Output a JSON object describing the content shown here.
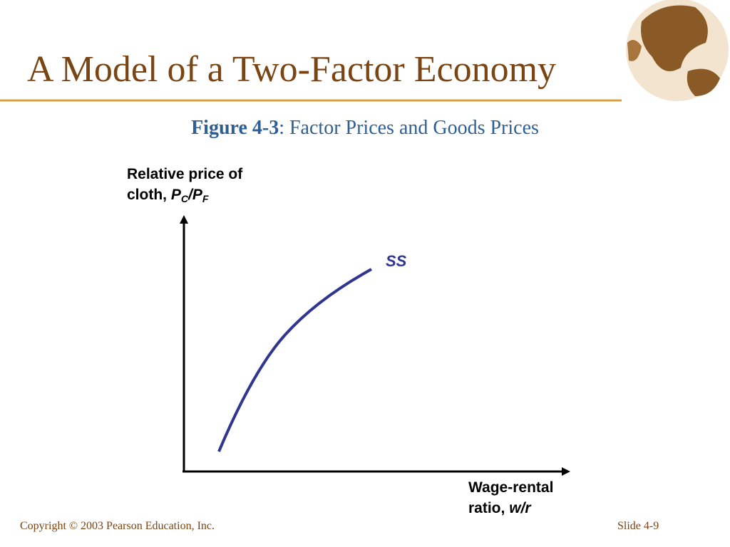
{
  "header": {
    "title": "A Model of a Two-Factor Economy"
  },
  "figure": {
    "number": "Figure 4-3",
    "caption": ": Factor Prices and Goods Prices",
    "y_axis": {
      "lines": [
        "Relative price of",
        "cloth,"
      ],
      "symbol": {
        "numerator": "P",
        "numerator_sub": "C",
        "denominator": "/P",
        "denominator_sub": "F"
      }
    },
    "x_axis": {
      "lines": [
        "Wage-rental",
        "ratio,"
      ],
      "symbol": "w/r"
    },
    "curve_label": "SS"
  },
  "footer": {
    "copyright": "Copyright © 2003 Pearson Education, Inc.",
    "slide": "Slide 4-9"
  }
}
